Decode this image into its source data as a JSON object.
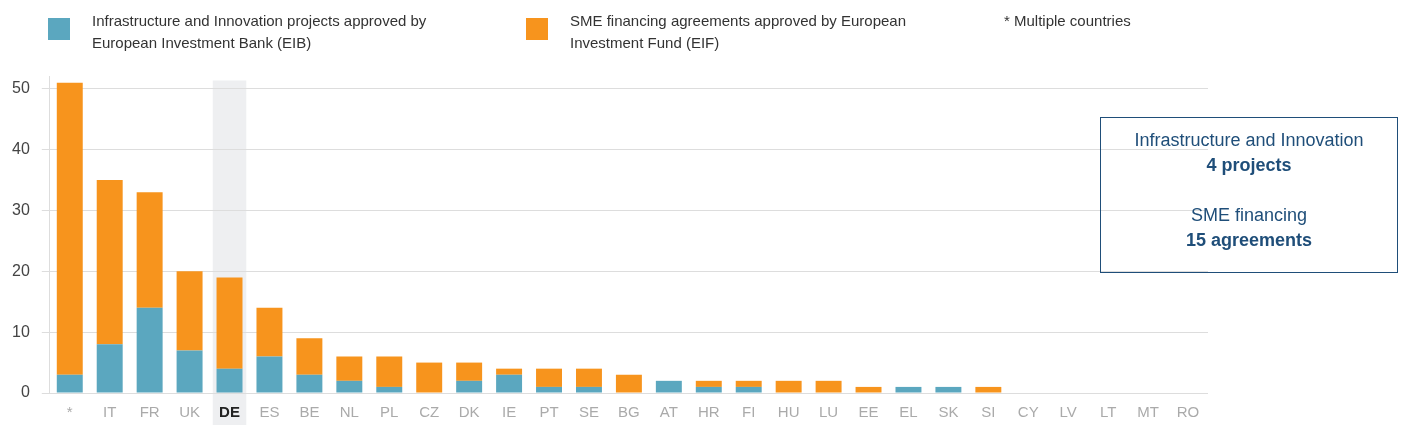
{
  "chart_data": {
    "type": "bar",
    "stacked": true,
    "legend": "top left",
    "categories": [
      "*",
      "IT",
      "FR",
      "UK",
      "DE",
      "ES",
      "BE",
      "NL",
      "PL",
      "CZ",
      "DK",
      "IE",
      "PT",
      "SE",
      "BG",
      "AT",
      "HR",
      "FI",
      "HU",
      "LU",
      "EE",
      "EL",
      "SK",
      "SI",
      "CY",
      "LV",
      "LT",
      "MT",
      "RO"
    ],
    "series": [
      {
        "name": "Infrastructure and Innovation projects approved by European Investment Bank (EIB)",
        "color": "#5ba7bf",
        "values": [
          3,
          8,
          14,
          7,
          4,
          6,
          3,
          2,
          1,
          0,
          2,
          3,
          1,
          1,
          0,
          2,
          1,
          1,
          0,
          0,
          0,
          1,
          1,
          0,
          0,
          0,
          0,
          0,
          0
        ]
      },
      {
        "name": "SME financing agreements approved by European Investment Fund (EIF)",
        "color": "#f7941d",
        "values": [
          48,
          27,
          19,
          13,
          15,
          8,
          6,
          4,
          5,
          5,
          3,
          1,
          3,
          3,
          3,
          0,
          1,
          1,
          2,
          2,
          1,
          0,
          0,
          1,
          0,
          0,
          0,
          0,
          0
        ]
      }
    ],
    "ylim": [
      0,
      52
    ],
    "yticks": [
      0,
      10,
      20,
      30,
      40,
      50
    ],
    "grid": "y",
    "bands": [
      {
        "axis": "x",
        "from": "DE",
        "to": "DE",
        "color": "#eeeff1"
      }
    ],
    "annotations": [
      "* Multiple countries",
      "Infrastructure and Innovation",
      "4 projects",
      "SME financing",
      "15 agreements"
    ]
  }
}
